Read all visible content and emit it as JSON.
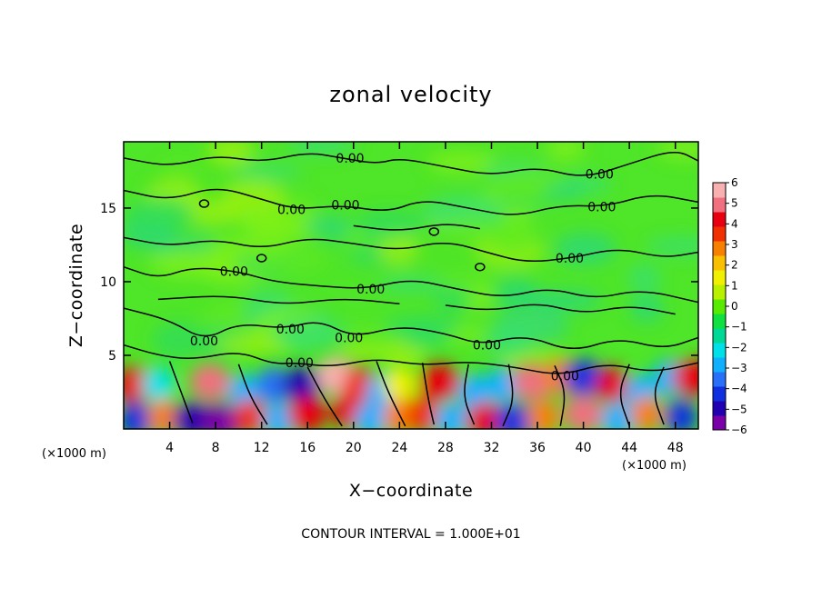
{
  "chart_data": {
    "type": "heatmap",
    "title": "zonal velocity",
    "xlabel": "X−coordinate",
    "ylabel": "Z−coordinate",
    "x_unit_label_left": "(×1000 m)",
    "x_unit_label_right": "(×1000 m)",
    "xlim": [
      0,
      50
    ],
    "ylim": [
      0,
      19.5
    ],
    "x_ticks": [
      4,
      8,
      12,
      16,
      20,
      24,
      28,
      32,
      36,
      40,
      44,
      48
    ],
    "x_tick_labels": [
      "4",
      "8",
      "12",
      "16",
      "20",
      "24",
      "28",
      "32",
      "36",
      "40",
      "44",
      "48"
    ],
    "y_ticks": [
      5,
      10,
      15
    ],
    "y_tick_labels": [
      "5",
      "10",
      "15"
    ],
    "colorbar": {
      "min": -6,
      "max": 6,
      "ticks": [
        6,
        5,
        4,
        3,
        2,
        1,
        0,
        -1,
        -2,
        -3,
        -4,
        -5,
        -6
      ],
      "tick_labels": [
        "6",
        "5",
        "4",
        "3",
        "2",
        "1",
        "0",
        "−1",
        "−2",
        "−3",
        "−4",
        "−5",
        "−6"
      ],
      "colors": [
        "#7a00a8",
        "#2000b0",
        "#1030e0",
        "#2870f8",
        "#10b0ff",
        "#00e0e8",
        "#00d896",
        "#10e040",
        "#58ea00",
        "#b8f000",
        "#f0f000",
        "#f8c000",
        "#f88000",
        "#f03000",
        "#e80010",
        "#f07080",
        "#f8b0b0"
      ]
    },
    "contour_level_label": "0.00",
    "contour_note": "CONTOUR INTERVAL = 1.000E+01",
    "lower_band": {
      "z_top": 4.8,
      "cells": [
        {
          "x": 1.0,
          "z": 3.0,
          "v": 4.5
        },
        {
          "x": 3.0,
          "z": 3.0,
          "v": -2.0
        },
        {
          "x": 7.5,
          "z": 3.2,
          "v": 5.0
        },
        {
          "x": 10.5,
          "z": 2.5,
          "v": -3.0
        },
        {
          "x": 13.0,
          "z": 3.0,
          "v": -3.5
        },
        {
          "x": 15.5,
          "z": 3.0,
          "v": -5.0
        },
        {
          "x": 18.5,
          "z": 3.6,
          "v": 5.5
        },
        {
          "x": 20.5,
          "z": 3.0,
          "v": 3.5
        },
        {
          "x": 22.5,
          "z": 2.5,
          "v": -3.0
        },
        {
          "x": 24.0,
          "z": 3.0,
          "v": 1.5
        },
        {
          "x": 27.5,
          "z": 3.2,
          "v": 4.5
        },
        {
          "x": 30.5,
          "z": 2.5,
          "v": -3.0
        },
        {
          "x": 33.0,
          "z": 3.0,
          "v": -2.5
        },
        {
          "x": 35.5,
          "z": 3.2,
          "v": 5.0
        },
        {
          "x": 38.0,
          "z": 3.5,
          "v": 2.5
        },
        {
          "x": 40.0,
          "z": 3.5,
          "v": -4.5
        },
        {
          "x": 42.5,
          "z": 3.0,
          "v": 4.0
        },
        {
          "x": 45.0,
          "z": 2.5,
          "v": -2.5
        },
        {
          "x": 47.5,
          "z": 3.5,
          "v": -3.0
        },
        {
          "x": 49.5,
          "z": 3.5,
          "v": 4.5
        },
        {
          "x": 1.0,
          "z": 0.6,
          "v": -4.0
        },
        {
          "x": 3.5,
          "z": 0.8,
          "v": 3.0
        },
        {
          "x": 6.0,
          "z": 0.6,
          "v": -5.0
        },
        {
          "x": 8.5,
          "z": 0.5,
          "v": -6.0
        },
        {
          "x": 11.0,
          "z": 0.8,
          "v": 3.5
        },
        {
          "x": 13.5,
          "z": 0.6,
          "v": -3.0
        },
        {
          "x": 16.0,
          "z": 1.0,
          "v": 4.5
        },
        {
          "x": 19.5,
          "z": 1.2,
          "v": 4.0
        },
        {
          "x": 21.5,
          "z": 0.6,
          "v": -3.0
        },
        {
          "x": 24.0,
          "z": 0.8,
          "v": 2.5
        },
        {
          "x": 26.0,
          "z": 1.0,
          "v": 3.5
        },
        {
          "x": 28.5,
          "z": 0.6,
          "v": -2.5
        },
        {
          "x": 31.5,
          "z": 0.6,
          "v": 4.5
        },
        {
          "x": 34.0,
          "z": 0.5,
          "v": -4.5
        },
        {
          "x": 36.5,
          "z": 0.8,
          "v": 3.0
        },
        {
          "x": 40.0,
          "z": 1.0,
          "v": 5.0
        },
        {
          "x": 43.0,
          "z": 0.6,
          "v": -3.0
        },
        {
          "x": 45.5,
          "z": 1.0,
          "v": 2.5
        },
        {
          "x": 48.5,
          "z": 0.8,
          "v": -4.0
        }
      ]
    },
    "contour_labels": [
      {
        "text": "0.00",
        "x": 19.7,
        "z": 18.4
      },
      {
        "text": "0.00",
        "x": 41.4,
        "z": 17.3
      },
      {
        "text": "0.00",
        "x": 14.6,
        "z": 14.9
      },
      {
        "text": "0.00",
        "x": 19.3,
        "z": 15.2
      },
      {
        "text": "0.00",
        "x": 41.6,
        "z": 15.1
      },
      {
        "text": "0.00",
        "x": 38.8,
        "z": 11.6
      },
      {
        "text": "0.00",
        "x": 9.6,
        "z": 10.7
      },
      {
        "text": "0.00",
        "x": 21.5,
        "z": 9.5
      },
      {
        "text": "0.00",
        "x": 14.5,
        "z": 6.8
      },
      {
        "text": "0.00",
        "x": 19.6,
        "z": 6.2
      },
      {
        "text": "0.00",
        "x": 31.6,
        "z": 5.7
      },
      {
        "text": "0.00",
        "x": 7.0,
        "z": 6.0
      },
      {
        "text": "0.00",
        "x": 15.3,
        "z": 4.5
      },
      {
        "text": "0.00",
        "x": 38.4,
        "z": 3.6
      }
    ]
  }
}
